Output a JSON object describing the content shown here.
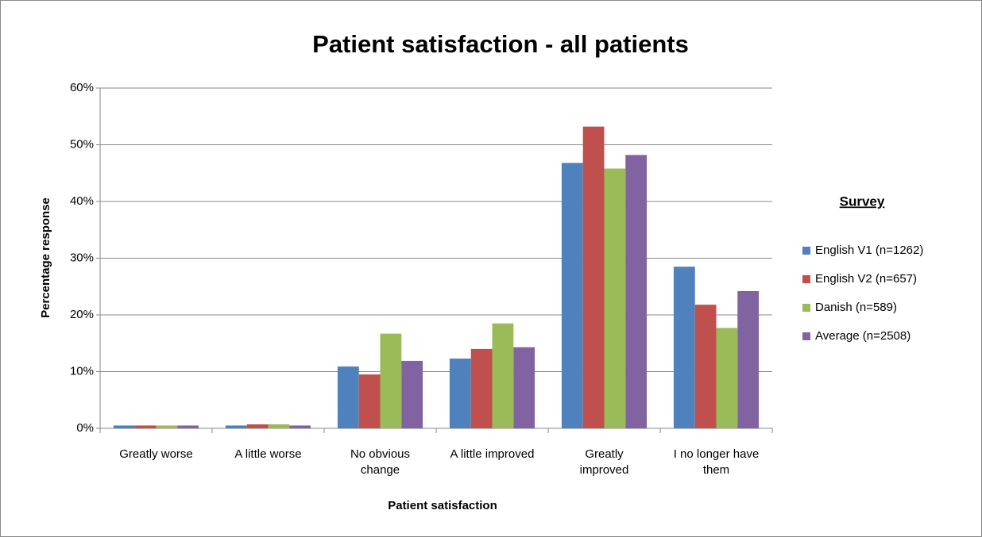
{
  "chart_data": {
    "type": "bar",
    "title": "Patient satisfaction - all patients",
    "x_label": "Patient satisfaction",
    "y_label": "Percentage response",
    "legend_title": "Survey",
    "categories": [
      "Greatly worse",
      "A little worse",
      "No obvious change",
      "A little improved",
      "Greatly improved",
      "I no longer have them"
    ],
    "series": [
      {
        "name": "English V1 (n=1262)",
        "color": "#4f81bd",
        "values": [
          0.5,
          0.5,
          10.9,
          12.3,
          46.8,
          28.5
        ]
      },
      {
        "name": "English V2 (n=657)",
        "color": "#c0504d",
        "values": [
          0.5,
          0.7,
          9.5,
          14.0,
          53.2,
          21.8
        ]
      },
      {
        "name": "Danish (n=589)",
        "color": "#9bbb59",
        "values": [
          0.5,
          0.7,
          16.7,
          18.5,
          45.8,
          17.7
        ]
      },
      {
        "name": "Average (n=2508)",
        "color": "#8064a2",
        "values": [
          0.5,
          0.5,
          11.9,
          14.3,
          48.2,
          24.2
        ]
      }
    ],
    "ylim": [
      0,
      60
    ],
    "yticks": [
      {
        "value": 0,
        "label": "0%"
      },
      {
        "value": 10,
        "label": "10%"
      },
      {
        "value": 20,
        "label": "20%"
      },
      {
        "value": 30,
        "label": "30%"
      },
      {
        "value": 40,
        "label": "40%"
      },
      {
        "value": 50,
        "label": "50%"
      },
      {
        "value": 60,
        "label": "60%"
      }
    ],
    "grid": true,
    "legend": "right"
  }
}
